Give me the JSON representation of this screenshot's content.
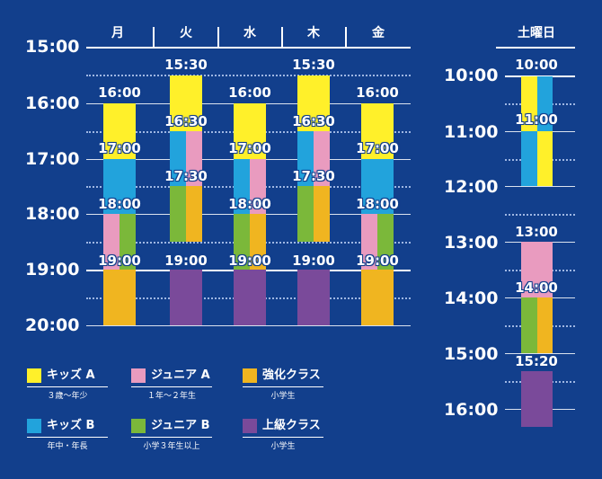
{
  "weekdays": {
    "days": [
      "月",
      "火",
      "水",
      "木",
      "金"
    ],
    "hours": [
      "15:00",
      "16:00",
      "17:00",
      "18:00",
      "19:00",
      "20:00"
    ],
    "time_labels": {
      "mon": [
        "16:00",
        "17:00",
        "18:00",
        "19:00"
      ],
      "tue": [
        "15:30",
        "16:30",
        "17:30",
        "19:00"
      ],
      "wed": [
        "16:00",
        "17:00",
        "18:00",
        "19:00"
      ],
      "thu": [
        "15:30",
        "16:30",
        "17:30",
        "19:00"
      ],
      "fri": [
        "16:00",
        "17:00",
        "18:00",
        "19:00"
      ]
    }
  },
  "saturday": {
    "title": "土曜日",
    "hours": [
      "10:00",
      "11:00",
      "12:00",
      "13:00",
      "14:00",
      "15:00",
      "16:00"
    ],
    "time_labels": [
      "10:00",
      "11:00",
      "13:00",
      "14:00",
      "15:20"
    ]
  },
  "colors": {
    "kids_a": "#fff02a",
    "kids_b": "#22a3dc",
    "junior_a": "#e99bbf",
    "junior_b": "#7bb83a",
    "kyouka": "#f0b520",
    "joukyuu": "#7a4a9a",
    "background": "#123f8c"
  },
  "legend": [
    {
      "name": "キッズ A",
      "sub": "３歳〜年少",
      "color": "#fff02a"
    },
    {
      "name": "ジュニア A",
      "sub": "１年〜２年生",
      "color": "#e99bbf"
    },
    {
      "name": "強化クラス",
      "sub": "小学生",
      "color": "#f0b520"
    },
    {
      "name": "キッズ B",
      "sub": "年中・年長",
      "color": "#22a3dc"
    },
    {
      "name": "ジュニア B",
      "sub": "小学３年生以上",
      "color": "#7bb83a"
    },
    {
      "name": "上級クラス",
      "sub": "小学生",
      "color": "#7a4a9a"
    }
  ]
}
